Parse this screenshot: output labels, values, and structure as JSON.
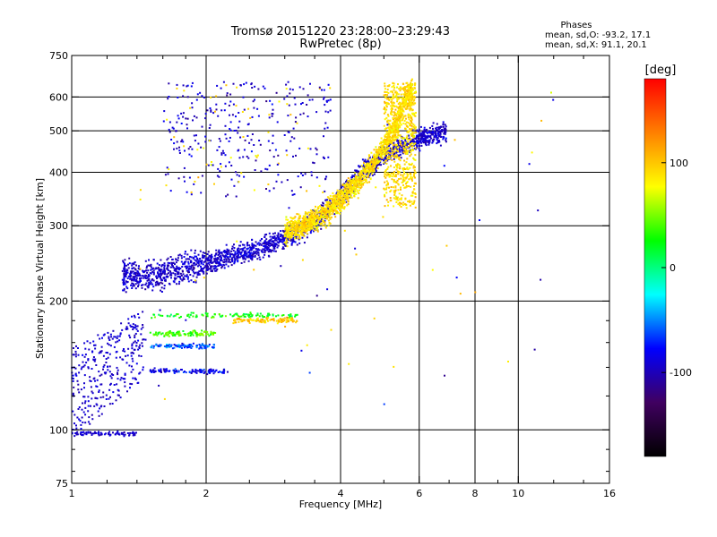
{
  "chart_data": {
    "type": "scatter",
    "title": "Tromsø 20151220 23:28:00–23:29:43",
    "subtitle": "RwPretec (8p)",
    "xlabel": "Frequency [MHz]",
    "ylabel": "Stationary phase Virtual Height [km]",
    "x_scale": "log",
    "y_scale": "log",
    "xlim": [
      1,
      16
    ],
    "ylim": [
      75,
      750
    ],
    "x_ticks": [
      1,
      2,
      4,
      6,
      8,
      10,
      16
    ],
    "x_tick_labels": [
      "1",
      "2",
      "4",
      "6",
      "8",
      "10",
      "16"
    ],
    "x_minor_ticks": [
      1.2,
      1.4,
      1.6,
      1.8,
      2.5,
      3,
      3.5,
      5,
      7,
      9,
      12,
      14
    ],
    "x_grid": [
      2,
      4,
      6,
      8,
      10
    ],
    "y_ticks": [
      75,
      100,
      200,
      300,
      400,
      500,
      600,
      750
    ],
    "y_tick_labels": [
      "75",
      "100",
      "200",
      "300",
      "400",
      "500",
      "600",
      "750"
    ],
    "y_minor_ticks": [
      80,
      90,
      120,
      140,
      160,
      180
    ],
    "y_grid": [
      100,
      200,
      300,
      400,
      500,
      600
    ],
    "grid": true,
    "legend": {
      "title": "Phases",
      "entries": [
        "mean, sd,O: -93.2, 17.1",
        "mean, sd,X:  91.1, 20.1"
      ],
      "position": "top-right"
    },
    "colorbar": {
      "label": "[deg]",
      "min": -180,
      "max": 180,
      "ticks": [
        100,
        0,
        -100
      ],
      "tick_labels": [
        "100",
        "0",
        "-100"
      ],
      "stops": [
        "#ff0000",
        "#ff8000",
        "#ffff00",
        "#00ff00",
        "#00ffff",
        "#0000ff",
        "#400060",
        "#000000"
      ]
    },
    "series": [
      {
        "name": "O-mode",
        "trace": [
          [
            1.3,
            230
          ],
          [
            1.5,
            228
          ],
          [
            1.7,
            235
          ],
          [
            2.0,
            245
          ],
          [
            2.3,
            255
          ],
          [
            2.6,
            265
          ],
          [
            3.0,
            280
          ],
          [
            3.4,
            300
          ],
          [
            3.8,
            330
          ],
          [
            4.2,
            370
          ],
          [
            4.6,
            410
          ],
          [
            5.0,
            440
          ],
          [
            5.5,
            460
          ],
          [
            6.0,
            480
          ],
          [
            6.5,
            490
          ],
          [
            6.9,
            500
          ]
        ],
        "phase_mean": -93.2
      },
      {
        "name": "X-mode",
        "trace": [
          [
            3.0,
            290
          ],
          [
            3.3,
            300
          ],
          [
            3.6,
            315
          ],
          [
            4.0,
            345
          ],
          [
            4.4,
            380
          ],
          [
            4.8,
            430
          ],
          [
            5.2,
            490
          ],
          [
            5.5,
            560
          ],
          [
            5.8,
            630
          ]
        ],
        "phase_mean": 91.1
      }
    ]
  }
}
